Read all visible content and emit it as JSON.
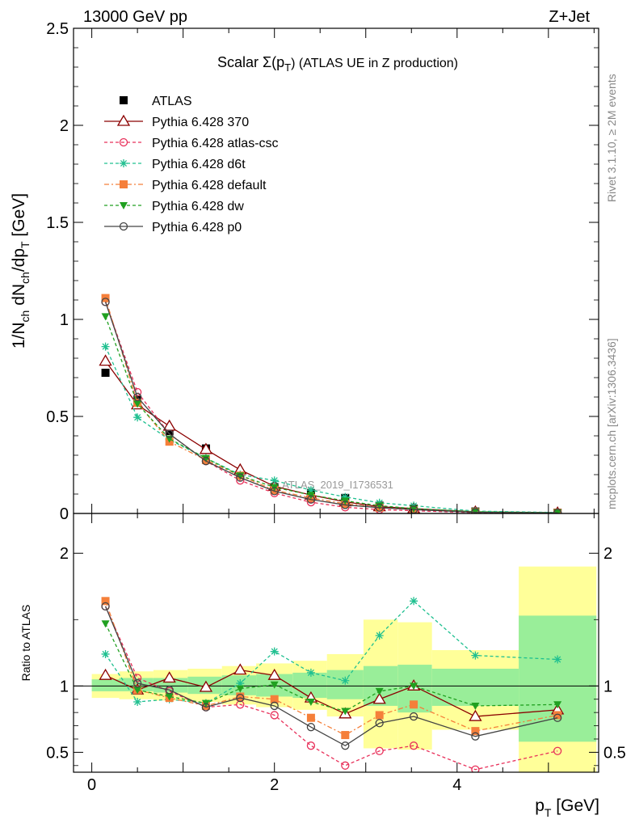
{
  "header": {
    "energy": "13000 GeV pp",
    "process": "Z+Jet"
  },
  "side_labels": {
    "rivet": "Rivet 3.1.10, ≥ 2M events",
    "source": "mcplots.cern.ch [arXiv:1306.3436]"
  },
  "watermark": "ATLAS_2019_I1736531",
  "legend_placement": "top-left",
  "chart_data": [
    {
      "type": "line",
      "title": "Scalar Σ(p_T) (ATLAS UE in Z production)",
      "title_main": "Scalar Σ(p",
      "title_sub": "T",
      "title_end": ") (ATLAS UE in Z production)",
      "ylabel": "1/N_ch dN_ch/dp_T [GeV]",
      "xlim": [
        -0.2,
        5.55
      ],
      "ylim": [
        0,
        2.5
      ],
      "yticks": [
        "0",
        "0.5",
        "1",
        "1.5",
        "2",
        "2.5"
      ],
      "x": [
        0.15,
        0.5,
        0.85,
        1.25,
        1.625,
        2.0,
        2.4,
        2.775,
        3.15,
        3.525,
        4.2,
        5.1
      ],
      "series": [
        {
          "name": "ATLAS",
          "color": "#000000",
          "marker": "filled-square",
          "dash": "none",
          "values": [
            0.725,
            0.585,
            0.425,
            0.335,
            0.2,
            0.135,
            0.105,
            0.08,
            0.04,
            0.025,
            0.01,
            0.004
          ]
        },
        {
          "name": "Pythia 6.428 370",
          "color": "#8b0000",
          "marker": "open-triangle",
          "dash": "none",
          "values": [
            0.785,
            0.56,
            0.45,
            0.33,
            0.225,
            0.14,
            0.095,
            0.06,
            0.035,
            0.025,
            0.008,
            0.003
          ]
        },
        {
          "name": "Pythia 6.428 atlas-csc",
          "color": "#e8305a",
          "marker": "open-circle",
          "dash": "4,3",
          "values": [
            1.09,
            0.625,
            0.41,
            0.27,
            0.17,
            0.105,
            0.058,
            0.032,
            0.02,
            0.014,
            0.004,
            0.002
          ]
        },
        {
          "name": "Pythia 6.428 d6t",
          "color": "#20c090",
          "marker": "star",
          "dash": "4,3",
          "values": [
            0.86,
            0.495,
            0.38,
            0.285,
            0.2,
            0.17,
            0.12,
            0.085,
            0.055,
            0.04,
            0.012,
            0.005
          ]
        },
        {
          "name": "Pythia 6.428 default",
          "color": "#f57f3a",
          "marker": "filled-square",
          "dash": "6,3,2,3",
          "values": [
            1.11,
            0.57,
            0.37,
            0.275,
            0.195,
            0.12,
            0.08,
            0.05,
            0.03,
            0.02,
            0.007,
            0.003
          ]
        },
        {
          "name": "Pythia 6.428 dw",
          "color": "#20a020",
          "marker": "filled-triangle-down",
          "dash": "4,3",
          "values": [
            1.015,
            0.565,
            0.385,
            0.285,
            0.195,
            0.135,
            0.095,
            0.065,
            0.04,
            0.025,
            0.009,
            0.004
          ]
        },
        {
          "name": "Pythia 6.428 p0",
          "color": "#444444",
          "marker": "open-circle",
          "dash": "none",
          "values": [
            1.09,
            0.6,
            0.41,
            0.27,
            0.185,
            0.115,
            0.072,
            0.044,
            0.03,
            0.02,
            0.006,
            0.003
          ]
        }
      ]
    },
    {
      "type": "line",
      "title": "",
      "xlabel_main": "p",
      "xlabel_sub": "T",
      "xlabel_end": " [GeV]",
      "ylabel": "Ratio to ATLAS",
      "xlim": [
        -0.2,
        5.55
      ],
      "ylim": [
        0.35,
        2.3
      ],
      "yticks": [
        "0.5",
        "1",
        "2"
      ],
      "xticks": [
        "0",
        "2",
        "4"
      ],
      "bands": {
        "edges": [
          0.0,
          0.3,
          0.675,
          1.05,
          1.425,
          1.8,
          2.2,
          2.575,
          2.975,
          3.35,
          3.725,
          4.675,
          5.525
        ],
        "green_low": [
          0.96,
          0.96,
          0.95,
          0.94,
          0.93,
          0.92,
          0.91,
          0.9,
          0.85,
          0.8,
          0.85,
          0.58
        ],
        "green_high": [
          1.05,
          1.06,
          1.06,
          1.07,
          1.08,
          1.09,
          1.1,
          1.12,
          1.15,
          1.16,
          1.13,
          1.53
        ],
        "yellow_low": [
          0.91,
          0.9,
          0.89,
          0.88,
          0.86,
          0.84,
          0.82,
          0.77,
          0.53,
          0.52,
          0.67,
          0.35
        ],
        "yellow_high": [
          1.09,
          1.11,
          1.12,
          1.13,
          1.15,
          1.17,
          1.19,
          1.24,
          1.5,
          1.48,
          1.27,
          1.9
        ]
      },
      "x": [
        0.15,
        0.5,
        0.85,
        1.25,
        1.625,
        2.0,
        2.4,
        2.775,
        3.15,
        3.525,
        4.2,
        5.1
      ],
      "series": [
        {
          "name": "Pythia 6.428 370",
          "color": "#8b0000",
          "marker": "open-triangle",
          "dash": "none",
          "values": [
            1.08,
            0.97,
            1.06,
            0.99,
            1.12,
            1.08,
            0.91,
            0.79,
            0.9,
            1.0,
            0.77,
            0.82
          ]
        },
        {
          "name": "Pythia 6.428 atlas-csc",
          "color": "#e8305a",
          "marker": "open-circle",
          "dash": "4,3",
          "values": [
            1.6,
            1.06,
            0.96,
            0.84,
            0.86,
            0.78,
            0.55,
            0.4,
            0.51,
            0.55,
            0.37,
            0.51
          ]
        },
        {
          "name": "Pythia 6.428 d6t",
          "color": "#20c090",
          "marker": "star",
          "dash": "4,3",
          "values": [
            1.24,
            0.88,
            0.9,
            0.87,
            1.02,
            1.26,
            1.1,
            1.04,
            1.38,
            1.64,
            1.23,
            1.2
          ]
        },
        {
          "name": "Pythia 6.428 default",
          "color": "#f57f3a",
          "marker": "filled-square",
          "dash": "6,3,2,3",
          "values": [
            1.64,
            0.97,
            0.91,
            0.85,
            0.92,
            0.9,
            0.76,
            0.63,
            0.78,
            0.86,
            0.66,
            0.78
          ]
        },
        {
          "name": "Pythia 6.428 dw",
          "color": "#20a020",
          "marker": "filled-triangle-down",
          "dash": "4,3",
          "values": [
            1.47,
            0.97,
            0.92,
            0.87,
            0.98,
            1.01,
            0.88,
            0.81,
            0.96,
            1.0,
            0.85,
            0.86
          ]
        },
        {
          "name": "Pythia 6.428 p0",
          "color": "#444444",
          "marker": "open-circle",
          "dash": "none",
          "values": [
            1.6,
            1.02,
            0.97,
            0.84,
            0.91,
            0.85,
            0.69,
            0.55,
            0.72,
            0.77,
            0.62,
            0.76
          ]
        }
      ]
    }
  ]
}
